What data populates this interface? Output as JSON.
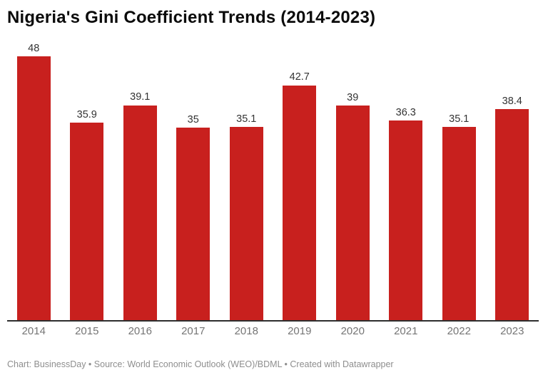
{
  "header": {
    "title": "Nigeria's Gini Coefficient Trends (2014-2023)"
  },
  "footer": {
    "attribution": "Chart: BusinessDay • Source: World Economic Outlook (WEO)/BDML • Created with Datawrapper"
  },
  "colors": {
    "bar": "#c8201e",
    "title": "#0b0b0b",
    "value_label": "#333333",
    "axis_label": "#757575",
    "axis_line": "#2e2e2e",
    "footer_text": "#8e8e8e",
    "background": "#ffffff"
  },
  "chart_data": {
    "type": "bar",
    "title": "Nigeria's Gini Coefficient Trends (2014-2023)",
    "categories": [
      "2014",
      "2015",
      "2016",
      "2017",
      "2018",
      "2019",
      "2020",
      "2021",
      "2022",
      "2023"
    ],
    "values": [
      48,
      35.9,
      39.1,
      35,
      35.1,
      42.7,
      39,
      36.3,
      35.1,
      38.4
    ],
    "xlabel": "",
    "ylabel": "",
    "ylim": [
      0,
      50
    ],
    "grid": false,
    "legend": false,
    "value_labels_shown": true,
    "bar_color": "#c8201e",
    "orientation": "vertical"
  }
}
